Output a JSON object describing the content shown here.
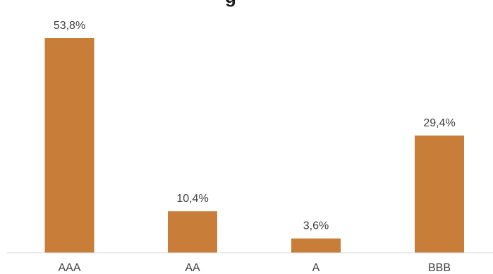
{
  "chart_data": {
    "type": "bar",
    "title": "",
    "title_partial": "g",
    "categories": [
      "AAA",
      "AA",
      "A",
      "BBB"
    ],
    "values": [
      53.8,
      10.4,
      3.6,
      29.4
    ],
    "data_labels": [
      "53,8%",
      "10,4%",
      "3,6%",
      "29,4%"
    ],
    "xlabel": "",
    "ylabel": "",
    "ylim": [
      0,
      60
    ],
    "grid": false,
    "legend": "none",
    "bar_color": "#C87D38",
    "axis_color": "#D9D9D9",
    "label_color": "#404040"
  }
}
